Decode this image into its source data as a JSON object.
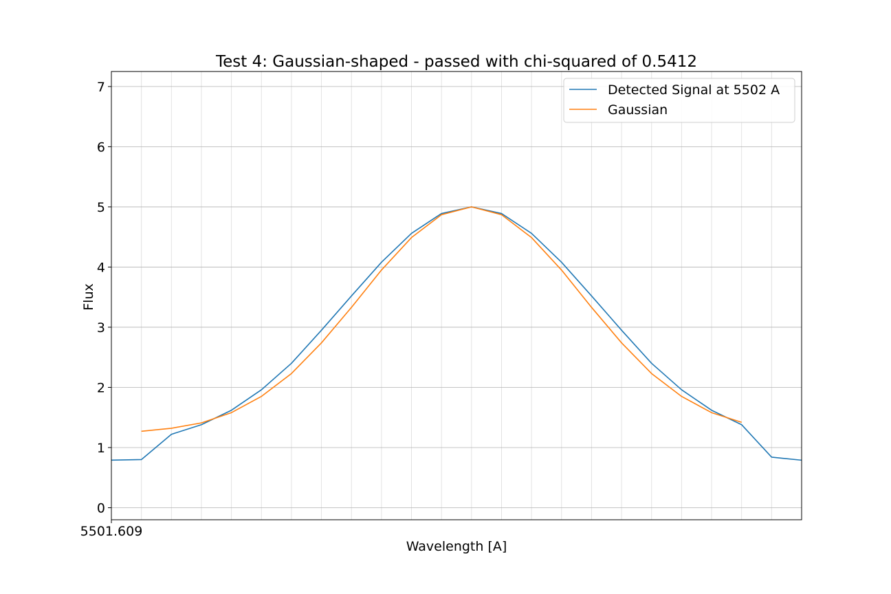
{
  "chart_data": {
    "type": "line",
    "title": "Test 4: Gaussian-shaped - passed with chi-squared of 0.5412",
    "xlabel": "Wavelength [A]",
    "ylabel": "Flux",
    "x_tick_label": "5501.609",
    "x_index_range": [
      0,
      23
    ],
    "ylim": [
      -0.2,
      7.25
    ],
    "yticks": [
      0,
      1,
      2,
      3,
      4,
      5,
      6,
      7
    ],
    "grid": true,
    "legend_position": "top-right",
    "series": [
      {
        "name": "Detected Signal at 5502 A",
        "color": "#1f77b4",
        "x": [
          0,
          1,
          2,
          3,
          4,
          5,
          6,
          7,
          8,
          9,
          10,
          11,
          12,
          13,
          14,
          15,
          16,
          17,
          18,
          19,
          20,
          21,
          22,
          23
        ],
        "values": [
          0.79,
          0.8,
          1.22,
          1.38,
          1.62,
          1.96,
          2.4,
          2.95,
          3.52,
          4.08,
          4.56,
          4.89,
          5.0,
          4.89,
          4.56,
          4.08,
          3.52,
          2.95,
          2.4,
          1.96,
          1.62,
          1.38,
          0.84,
          0.79
        ]
      },
      {
        "name": "Gaussian",
        "color": "#ff7f0e",
        "x": [
          1,
          2,
          3,
          4,
          5,
          6,
          7,
          8,
          9,
          10,
          11,
          12,
          13,
          14,
          15,
          16,
          17,
          18,
          19,
          20,
          21
        ],
        "values": [
          1.27,
          1.32,
          1.41,
          1.58,
          1.85,
          2.23,
          2.74,
          3.33,
          3.95,
          4.49,
          4.87,
          5.0,
          4.87,
          4.49,
          3.95,
          3.33,
          2.74,
          2.23,
          1.85,
          1.58,
          1.42
        ]
      }
    ]
  }
}
